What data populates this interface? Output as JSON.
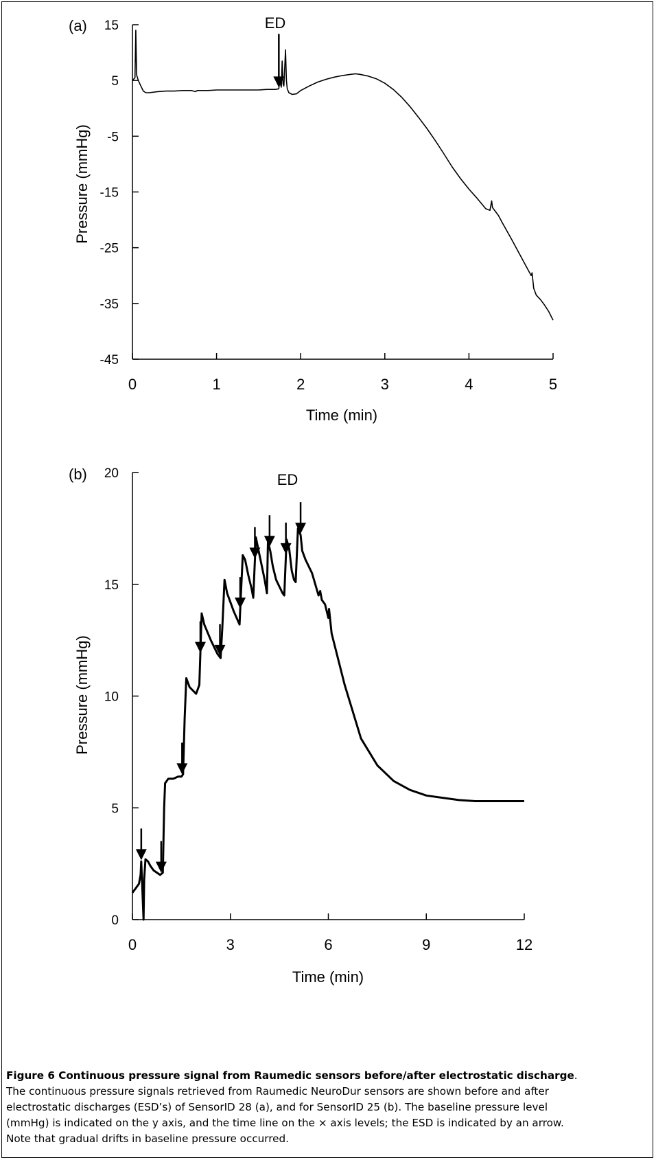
{
  "caption": {
    "title": "Figure 6 Continuous pressure signal from Raumedic sensors before/after electrostatic discharge",
    "title_end": ".",
    "lines": [
      "The continuous pressure signals retrieved from Raumedic NeuroDur sensors are shown before and after",
      "electrostatic discharges (ESD’s) of SensorID 28 (a), and for SensorID 25 (b). The baseline pressure level",
      "(mmHg) is indicated on the y axis, and the time line on the × axis levels; the ESD is indicated by an arrow.",
      "Note that gradual drifts in baseline pressure occurred."
    ]
  },
  "chart_data": [
    {
      "type": "line",
      "panel_label": "(a)",
      "xlabel": "Time (min)",
      "ylabel": "Pressure (mmHg)",
      "xlim": [
        0,
        5
      ],
      "ylim": [
        -45,
        15
      ],
      "xticks": [
        0,
        1,
        2,
        3,
        4,
        5
      ],
      "yticks": [
        15,
        5,
        -5,
        -15,
        -25,
        -35,
        -45
      ],
      "annotation": "ED",
      "arrows_x": [
        1.74
      ],
      "series": [
        {
          "x": [
            0.0,
            0.03,
            0.04,
            0.05,
            0.07,
            0.1,
            0.13,
            0.16,
            0.2,
            0.3,
            0.4,
            0.5,
            0.6,
            0.7,
            0.75,
            0.77,
            0.8,
            0.9,
            1.0,
            1.1,
            1.2,
            1.3,
            1.4,
            1.5,
            1.6,
            1.7,
            1.74,
            1.75,
            1.77,
            1.78,
            1.79,
            1.8,
            1.82,
            1.83,
            1.84,
            1.86,
            1.9,
            1.95,
            2.0,
            2.1,
            2.2,
            2.3,
            2.4,
            2.5,
            2.6,
            2.65,
            2.7,
            2.8,
            2.9,
            3.0,
            3.1,
            3.2,
            3.3,
            3.4,
            3.5,
            3.6,
            3.7,
            3.8,
            3.9,
            4.0,
            4.1,
            4.2,
            4.25,
            4.27,
            4.28,
            4.3,
            4.35,
            4.4,
            4.5,
            4.6,
            4.7,
            4.74,
            4.75,
            4.77,
            4.8,
            4.85,
            4.9,
            4.95,
            5.0
          ],
          "y": [
            5.0,
            5.5,
            14.0,
            6.0,
            5.0,
            4.0,
            3.1,
            2.8,
            2.8,
            3.0,
            3.1,
            3.1,
            3.2,
            3.2,
            3.0,
            3.2,
            3.2,
            3.2,
            3.3,
            3.3,
            3.3,
            3.3,
            3.3,
            3.3,
            3.4,
            3.4,
            3.5,
            4.8,
            3.8,
            8.5,
            4.4,
            4.0,
            10.5,
            5.0,
            3.5,
            2.8,
            2.5,
            2.6,
            3.2,
            4.0,
            4.7,
            5.2,
            5.6,
            5.9,
            6.1,
            6.2,
            6.1,
            5.8,
            5.3,
            4.5,
            3.4,
            2.0,
            0.3,
            -1.6,
            -3.6,
            -5.8,
            -8.1,
            -10.5,
            -12.6,
            -14.5,
            -16.2,
            -18.0,
            -18.3,
            -16.6,
            -17.8,
            -18.2,
            -19.2,
            -20.6,
            -23.3,
            -26.1,
            -28.9,
            -30.0,
            -29.5,
            -32.3,
            -33.5,
            -34.3,
            -35.3,
            -36.5,
            -38.0
          ]
        }
      ]
    },
    {
      "type": "line",
      "panel_label": "(b)",
      "xlabel": "Time (min)",
      "ylabel": "Pressure (mmHg)",
      "xlim": [
        0,
        12
      ],
      "ylim": [
        0,
        20
      ],
      "xticks": [
        0,
        3,
        6,
        9,
        12
      ],
      "yticks": [
        0,
        5,
        10,
        15,
        20
      ],
      "annotation": "ED",
      "arrows_x": [
        0.27,
        0.88,
        1.52,
        2.08,
        2.68,
        3.3,
        3.75,
        4.2,
        4.7,
        5.15
      ],
      "series": [
        {
          "x": [
            0.0,
            0.1,
            0.2,
            0.25,
            0.27,
            0.3,
            0.34,
            0.36,
            0.4,
            0.48,
            0.55,
            0.65,
            0.75,
            0.85,
            0.93,
            0.97,
            1.0,
            1.1,
            1.25,
            1.4,
            1.5,
            1.55,
            1.6,
            1.65,
            1.75,
            1.95,
            2.05,
            2.12,
            2.2,
            2.4,
            2.6,
            2.7,
            2.75,
            2.82,
            2.9,
            3.1,
            3.28,
            3.32,
            3.38,
            3.45,
            3.55,
            3.65,
            3.7,
            3.78,
            3.85,
            3.95,
            4.05,
            4.12,
            4.15,
            4.22,
            4.3,
            4.4,
            4.5,
            4.6,
            4.65,
            4.72,
            4.8,
            4.88,
            4.95,
            5.0,
            5.07,
            5.15,
            5.2,
            5.3,
            5.5,
            5.6,
            5.7,
            5.75,
            5.8,
            5.9,
            5.95,
            6.0,
            6.02,
            6.1,
            6.5,
            7.0,
            7.5,
            8.0,
            8.5,
            9.0,
            9.5,
            10.0,
            10.5,
            11.0,
            11.5,
            12.0
          ],
          "y": [
            1.2,
            1.4,
            1.6,
            2.0,
            2.6,
            1.5,
            0.0,
            1.8,
            2.7,
            2.6,
            2.4,
            2.2,
            2.1,
            2.0,
            2.1,
            5.0,
            6.1,
            6.3,
            6.3,
            6.4,
            6.4,
            6.5,
            9.0,
            10.8,
            10.4,
            10.1,
            10.5,
            13.7,
            13.2,
            12.5,
            11.9,
            11.7,
            13.0,
            15.2,
            14.6,
            13.8,
            13.2,
            14.5,
            16.3,
            16.1,
            15.4,
            14.8,
            14.4,
            17.1,
            16.6,
            15.9,
            15.2,
            14.6,
            16.9,
            16.5,
            15.8,
            15.2,
            14.9,
            14.6,
            14.5,
            17.0,
            16.6,
            15.6,
            15.2,
            15.1,
            17.5,
            17.2,
            16.5,
            16.1,
            15.5,
            15.0,
            14.5,
            14.7,
            14.3,
            14.1,
            13.8,
            13.5,
            13.9,
            12.8,
            10.5,
            8.1,
            6.9,
            6.2,
            5.8,
            5.55,
            5.45,
            5.35,
            5.3,
            5.3,
            5.3,
            5.3
          ]
        }
      ]
    }
  ]
}
